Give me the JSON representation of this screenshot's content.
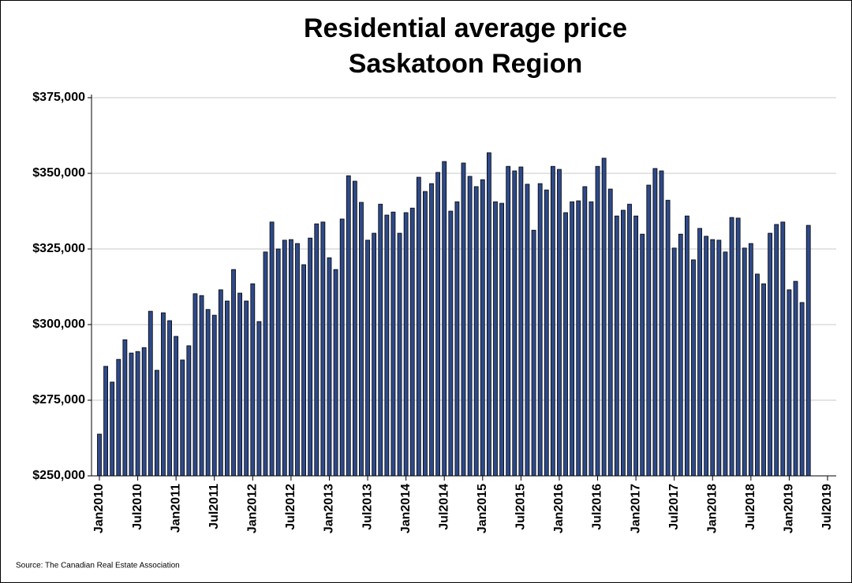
{
  "chart_data": {
    "type": "bar",
    "title": "Residential average price",
    "subtitle": "Saskatoon Region",
    "source": "Source: The Canadian Real Estate Association",
    "color": "#2e4a8a",
    "grid": true,
    "categories": [
      "Jan2010",
      null,
      null,
      null,
      null,
      null,
      "Jul2010",
      null,
      null,
      null,
      null,
      null,
      "Jan2011",
      null,
      null,
      null,
      null,
      null,
      "Jul2011",
      null,
      null,
      null,
      null,
      null,
      "Jan2012",
      null,
      null,
      null,
      null,
      null,
      "Jul2012",
      null,
      null,
      null,
      null,
      null,
      "Jan2013",
      null,
      null,
      null,
      null,
      null,
      "Jul2013",
      null,
      null,
      null,
      null,
      null,
      "Jan2014",
      null,
      null,
      null,
      null,
      null,
      "Jul2014",
      null,
      null,
      null,
      null,
      null,
      "Jan2015",
      null,
      null,
      null,
      null,
      null,
      "Jul2015",
      null,
      null,
      null,
      null,
      null,
      "Jan2016",
      null,
      null,
      null,
      null,
      null,
      "Jul2016",
      null,
      null,
      null,
      null,
      null,
      "Jan2017",
      null,
      null,
      null,
      null,
      null,
      "Jul2017",
      null,
      null,
      null,
      null,
      null,
      "Jan2018",
      null,
      null,
      null,
      null,
      null,
      "Jul2018",
      null,
      null,
      null,
      null,
      null,
      "Jan2019",
      null,
      null,
      null,
      null,
      null,
      "Jul2019"
    ],
    "values": [
      263800,
      286200,
      281000,
      288500,
      295000,
      290600,
      291100,
      292400,
      304400,
      284900,
      303900,
      301300,
      296100,
      288300,
      293000,
      310200,
      309600,
      305000,
      303100,
      311500,
      307800,
      318200,
      310400,
      307800,
      313500,
      301000,
      324000,
      333900,
      325000,
      327900,
      328100,
      326800,
      319800,
      328600,
      333300,
      333900,
      322100,
      318200,
      334900,
      349200,
      347400,
      340400,
      327900,
      330200,
      339800,
      336200,
      337200,
      330200,
      337000,
      338500,
      348700,
      344000,
      346600,
      350300,
      353900,
      337500,
      340600,
      353400,
      349000,
      345600,
      347900,
      356800,
      340600,
      340100,
      352300,
      350800,
      352100,
      346400,
      331200,
      346600,
      344500,
      352300,
      351300,
      337000,
      340600,
      340900,
      345600,
      340600,
      352300,
      355000,
      344800,
      335900,
      337800,
      339800,
      335900,
      329900,
      346100,
      351600,
      350800,
      341100,
      325300,
      329900,
      335900,
      321400,
      331800,
      329200,
      328100,
      327900,
      324000,
      335400,
      335200,
      325300,
      326800,
      316700,
      313500,
      330200,
      333100,
      333900,
      311500,
      314300,
      307300,
      332800,
      null,
      null,
      null
    ],
    "ylim": [
      250000,
      375000
    ],
    "yticks": [
      {
        "value": 250000,
        "label": "$250,000"
      },
      {
        "value": 275000,
        "label": "$275,000"
      },
      {
        "value": 300000,
        "label": "$300,000"
      },
      {
        "value": 325000,
        "label": "$325,000"
      },
      {
        "value": 350000,
        "label": "$350,000"
      },
      {
        "value": 375000,
        "label": "$375,000"
      }
    ]
  }
}
